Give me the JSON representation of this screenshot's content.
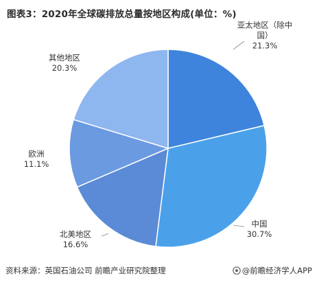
{
  "title": "图表3：2020年全球碳排放总量按地区构成(单位：%)",
  "source": "资料来源：英国石油公司 前瞻产业研究院整理",
  "brand": "@前瞻经济学人APP",
  "colors": {
    "asia_pacific": "#3f84dc",
    "china": "#4aa1ea",
    "north_america": "#5b8ad6",
    "europe": "#6b9ae1",
    "other": "#8eb6ef",
    "edge": "#ffffff",
    "leader": "#888888"
  },
  "chart_data": {
    "type": "pie",
    "title": "图表3：2020年全球碳排放总量按地区构成(单位：%)",
    "slices": [
      {
        "name_lines": [
          "亚太地区（除中",
          "国）"
        ],
        "label": "21.3%",
        "value": 21.3,
        "color_key": "asia_pacific"
      },
      {
        "name_lines": [
          "中国"
        ],
        "label": "30.7%",
        "value": 30.7,
        "color_key": "china"
      },
      {
        "name_lines": [
          "北美地区"
        ],
        "label": "16.6%",
        "value": 16.6,
        "color_key": "north_america"
      },
      {
        "name_lines": [
          "欧洲"
        ],
        "label": "11.1%",
        "value": 11.1,
        "color_key": "europe"
      },
      {
        "name_lines": [
          "其他地区"
        ],
        "label": "20.3%",
        "value": 20.3,
        "color_key": "other"
      }
    ]
  }
}
